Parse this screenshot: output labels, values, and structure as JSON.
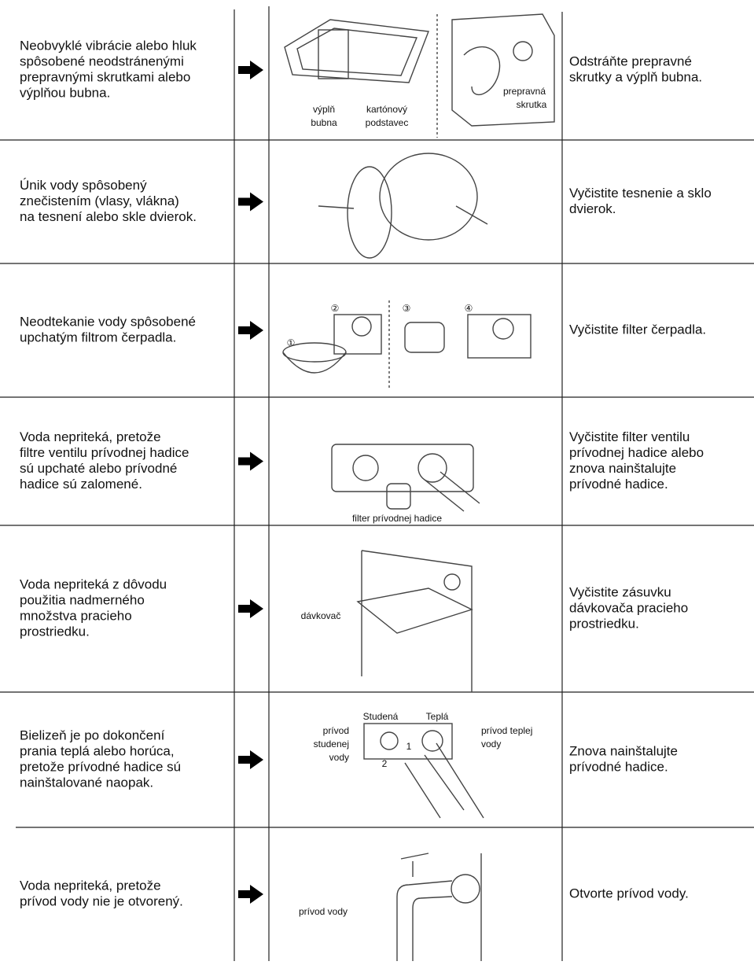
{
  "rows": [
    {
      "problem": [
        "Neobvyklé vibrácie alebo hluk",
        "spôsobené neodstránenými",
        "prepravnými skrutkami alebo",
        "výplňou bubna."
      ],
      "solution": [
        "Odstráňte prepravné",
        "skrutky a výplň bubna."
      ],
      "labels": [
        "výplň",
        "bubna",
        "kartónový",
        "podstavec",
        "prepravná",
        "skrutka"
      ]
    },
    {
      "problem": [
        "Únik vody spôsobený",
        "znečistením (vlasy, vlákna)",
        "na tesnení alebo skle dvierok."
      ],
      "solution": [
        "Vyčistite tesnenie a sklo",
        "dvierok."
      ],
      "labels": []
    },
    {
      "problem": [
        "Neodtekanie vody spôsobené",
        "upchatým filtrom čerpadla."
      ],
      "solution": [
        "Vyčistite filter čerpadla."
      ],
      "labels": [
        "①",
        "②",
        "③",
        "④"
      ]
    },
    {
      "problem": [
        "Voda nepriteká, pretože",
        "filtre ventilu prívodnej hadice",
        "sú upchaté alebo prívodné",
        "hadice sú zalomené."
      ],
      "solution": [
        "Vyčistite filter ventilu",
        "prívodnej hadice alebo",
        "znova nainštalujte",
        "prívodné hadice."
      ],
      "labels": [
        "filter prívodnej hadice"
      ]
    },
    {
      "problem": [
        "Voda nepriteká z dôvodu",
        "použitia nadmerného",
        "množstva pracieho",
        "prostriedku."
      ],
      "solution": [
        "Vyčistite zásuvku",
        "dávkovača pracieho",
        "prostriedku."
      ],
      "labels": [
        "dávkovač"
      ]
    },
    {
      "problem": [
        "Bielizeň je po dokončení",
        "prania teplá alebo horúca,",
        "pretože prívodné hadice sú",
        "nainštalované naopak."
      ],
      "solution": [
        "Znova nainštalujte",
        "prívodné hadice."
      ],
      "labels": [
        "Studená",
        "Teplá",
        "prívod",
        "studenej",
        "vody",
        "prívod teplej",
        "vody",
        "1",
        "2"
      ]
    },
    {
      "problem": [
        "Voda nepriteká, pretože",
        "prívod vody nie je otvorený."
      ],
      "solution": [
        "Otvorte prívod vody."
      ],
      "labels": [
        "prívod vody"
      ]
    }
  ]
}
